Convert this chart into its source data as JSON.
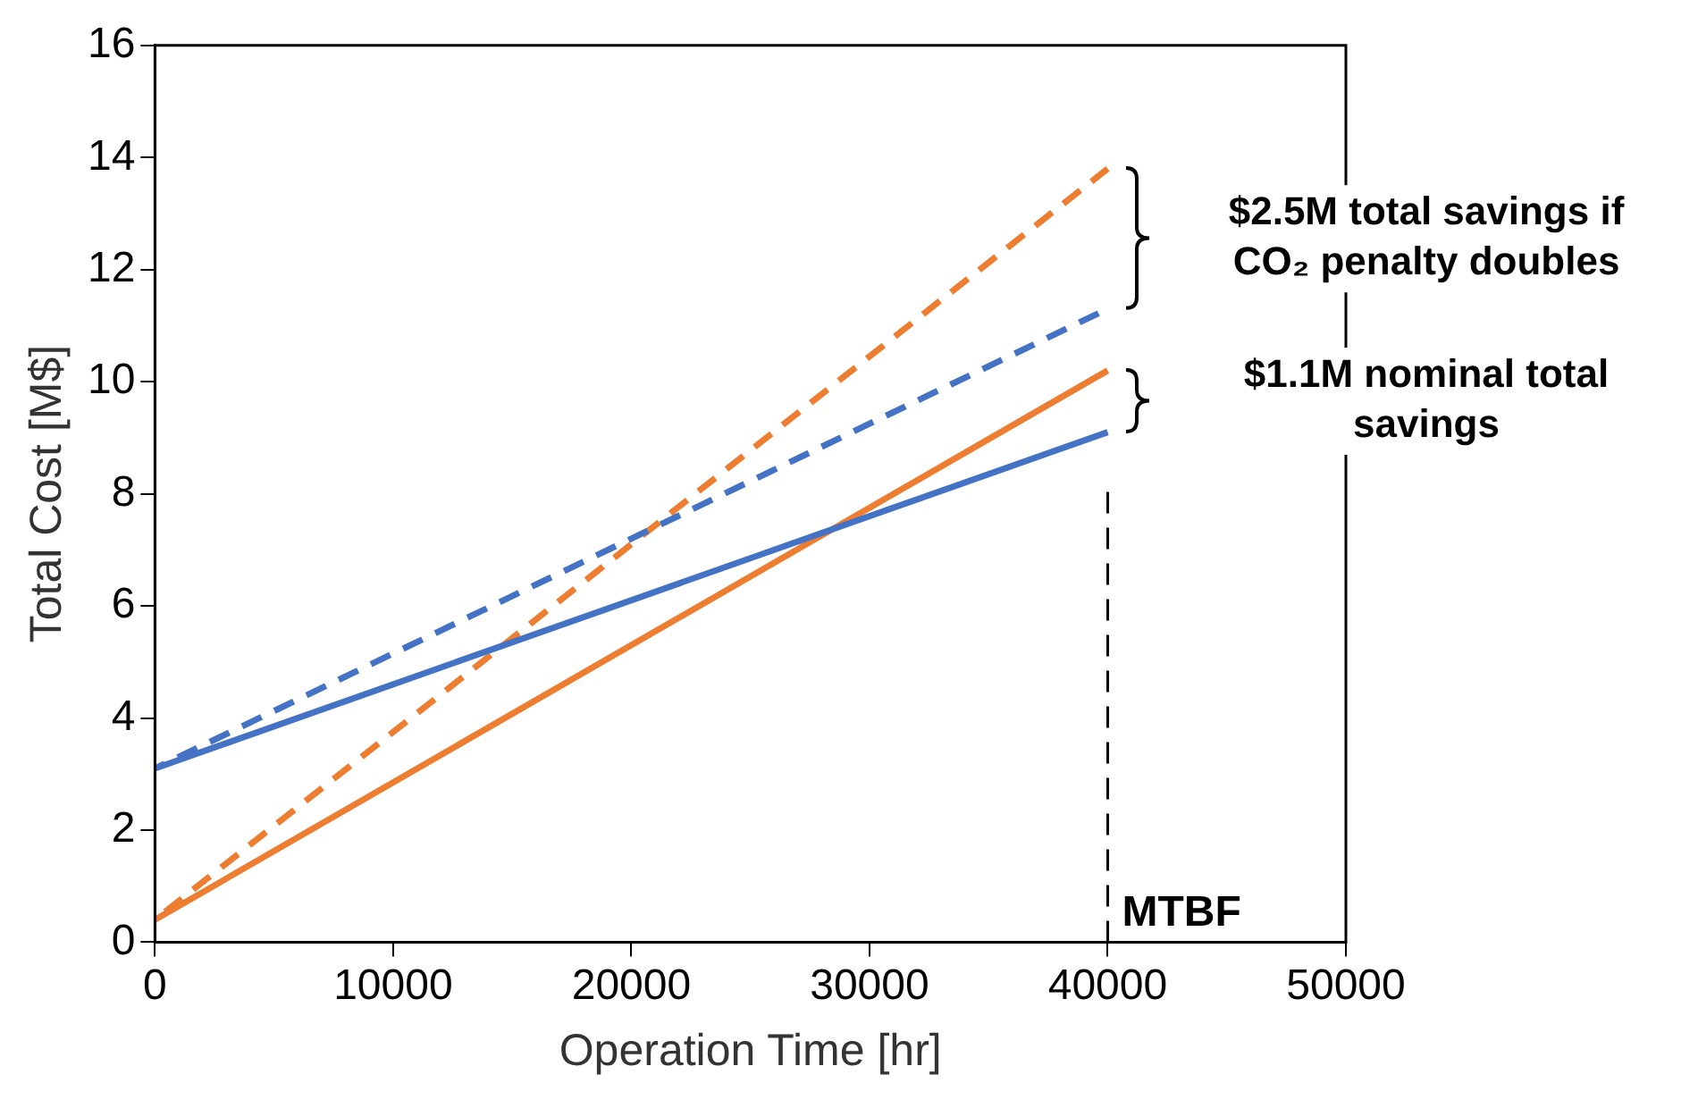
{
  "chart_data": {
    "type": "line",
    "xlabel": "Operation Time [hr]",
    "ylabel": "Total Cost [M$]",
    "xlim": [
      0,
      50000
    ],
    "xticks": [
      0,
      10000,
      20000,
      30000,
      40000,
      50000
    ],
    "ylim": [
      0,
      16
    ],
    "yticks": [
      0,
      2,
      4,
      6,
      8,
      10,
      12,
      14,
      16
    ],
    "grid": false,
    "legend": false,
    "marker": "none",
    "x": [
      0,
      40000
    ],
    "series": [
      {
        "color": "#4472c4",
        "values": [
          3.1,
          9.1
        ],
        "line_style": "solid"
      },
      {
        "color": "#ed7d31",
        "values": [
          0.4,
          10.2
        ],
        "line_style": "solid"
      },
      {
        "color": "#4472c4",
        "values": [
          3.1,
          11.3
        ],
        "line_style": "dashed"
      },
      {
        "color": "#ed7d31",
        "values": [
          0.4,
          13.8
        ],
        "line_style": "dashed"
      }
    ],
    "ref_lines": [
      {
        "axis": "x",
        "value": 40000,
        "label": "MTBF",
        "color": "#000000",
        "line_style": "dashed"
      }
    ],
    "annotations": [
      "$2.5M total savings if CO₂ penalty doubles",
      "$1.1M nominal total savings"
    ]
  }
}
